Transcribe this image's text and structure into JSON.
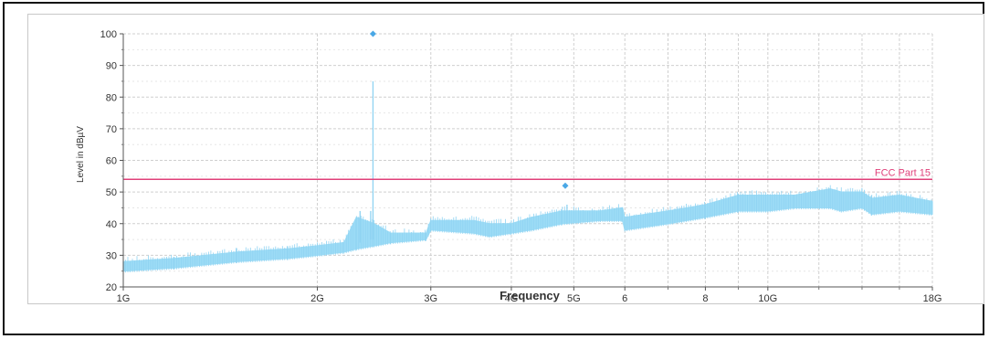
{
  "chart_data": {
    "type": "line",
    "xlabel": "Frequency",
    "ylabel": "Level in dBµV",
    "x_scale": "log",
    "xlim": [
      1,
      18
    ],
    "ylim": [
      20,
      100
    ],
    "y_ticks": [
      20,
      30,
      40,
      50,
      60,
      70,
      80,
      90,
      100
    ],
    "x_ticks": [
      {
        "value": 1,
        "label": "1G"
      },
      {
        "value": 2,
        "label": "2G"
      },
      {
        "value": 3,
        "label": "3G"
      },
      {
        "value": 4,
        "label": "4G"
      },
      {
        "value": 5,
        "label": "5G"
      },
      {
        "value": 6,
        "label": "6"
      },
      {
        "value": 8,
        "label": "8"
      },
      {
        "value": 10,
        "label": "10G"
      },
      {
        "value": 18,
        "label": "18G"
      }
    ],
    "x_minor_gridlines": [
      7,
      9,
      12,
      14,
      16
    ],
    "grid": true,
    "limit_line": {
      "name": "FCC Part 15",
      "value": 54,
      "color": "#e0407a"
    },
    "spectrum": {
      "color": "#9ddcf6",
      "envelope": [
        {
          "x": 1.0,
          "low": 25,
          "high": 28
        },
        {
          "x": 1.2,
          "low": 26,
          "high": 29
        },
        {
          "x": 1.5,
          "low": 28,
          "high": 31
        },
        {
          "x": 1.8,
          "low": 29,
          "high": 32
        },
        {
          "x": 2.0,
          "low": 30,
          "high": 33
        },
        {
          "x": 2.2,
          "low": 31,
          "high": 34
        },
        {
          "x": 2.3,
          "low": 32,
          "high": 42
        },
        {
          "x": 2.45,
          "low": 33,
          "high": 40
        },
        {
          "x": 2.6,
          "low": 34,
          "high": 37
        },
        {
          "x": 2.95,
          "low": 35,
          "high": 37
        },
        {
          "x": 3.0,
          "low": 38,
          "high": 41
        },
        {
          "x": 3.5,
          "low": 37,
          "high": 41
        },
        {
          "x": 3.7,
          "low": 36,
          "high": 40
        },
        {
          "x": 4.0,
          "low": 37,
          "high": 40
        },
        {
          "x": 4.3,
          "low": 38,
          "high": 42
        },
        {
          "x": 4.8,
          "low": 40,
          "high": 44
        },
        {
          "x": 5.5,
          "low": 41,
          "high": 44
        },
        {
          "x": 5.95,
          "low": 41,
          "high": 45
        },
        {
          "x": 6.0,
          "low": 38,
          "high": 42
        },
        {
          "x": 7.0,
          "low": 40,
          "high": 44
        },
        {
          "x": 8.0,
          "low": 42,
          "high": 46
        },
        {
          "x": 9.0,
          "low": 44,
          "high": 49
        },
        {
          "x": 10.0,
          "low": 44,
          "high": 49
        },
        {
          "x": 11.0,
          "low": 45,
          "high": 49
        },
        {
          "x": 12.5,
          "low": 45,
          "high": 51
        },
        {
          "x": 13.0,
          "low": 44,
          "high": 50
        },
        {
          "x": 14.0,
          "low": 45,
          "high": 50
        },
        {
          "x": 14.5,
          "low": 43,
          "high": 48
        },
        {
          "x": 16.0,
          "low": 44,
          "high": 49
        },
        {
          "x": 18.0,
          "low": 43,
          "high": 47
        }
      ],
      "spikes": [
        {
          "x": 2.44,
          "from": 35,
          "to": 85
        },
        {
          "x": 2.42,
          "from": 35,
          "to": 44
        },
        {
          "x": 2.33,
          "from": 34,
          "to": 44
        },
        {
          "x": 4.88,
          "from": 40,
          "to": 46
        }
      ]
    },
    "markers": [
      {
        "x": 2.44,
        "y": 100,
        "color": "#4aa8e6"
      },
      {
        "x": 4.85,
        "y": 52,
        "color": "#4aa8e6"
      }
    ]
  }
}
